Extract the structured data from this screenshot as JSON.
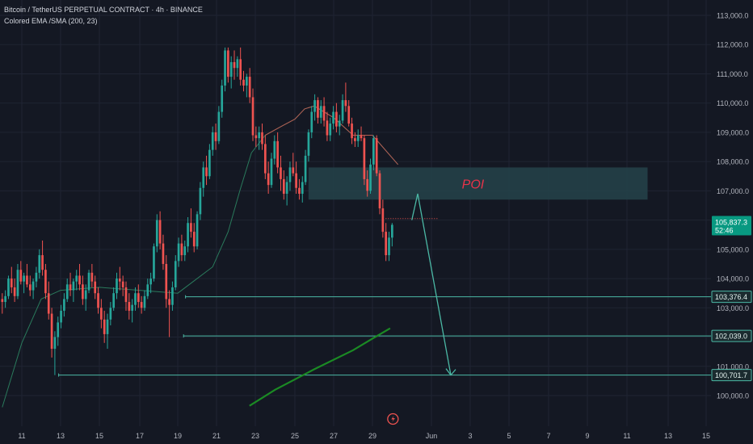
{
  "legend": {
    "title": "Bitcoin / TetherUS PERPETUAL CONTRACT · 4h · BINANCE",
    "indicator": "Colored EMA /SMA (200, 23)"
  },
  "colors": {
    "background": "#141823",
    "bull": "#26a69a",
    "bear": "#ef5350",
    "sma": "#1b8a24",
    "ema": "#2a7a5c",
    "level_line": "#4bb8a5",
    "projection": "#4bb8a5",
    "poi_fill": "#24434a",
    "poi_text": "#e8334a",
    "current_badge": "#089981"
  },
  "chart_data": {
    "type": "candlestick",
    "instrument": "Bitcoin / TetherUS PERPETUAL CONTRACT",
    "timeframe": "4h",
    "exchange": "BINANCE",
    "y_axis": {
      "range": [
        99400,
        113400
      ],
      "ticks": [
        "113,000.0",
        "112,000.0",
        "111,000.0",
        "110,000.0",
        "109,000.0",
        "108,000.0",
        "107,000.0",
        "106,000.0",
        "105,000.0",
        "104,000.0",
        "103,000.0",
        "102,000.0",
        "101,000.0",
        "100,000.0"
      ],
      "tick_values": [
        113000,
        112000,
        111000,
        110000,
        109000,
        108000,
        107000,
        106000,
        105000,
        104000,
        103000,
        102000,
        101000,
        100000
      ]
    },
    "x_axis": {
      "range": [
        10,
        16
      ],
      "ticks": [
        {
          "label": "11",
          "day": 11
        },
        {
          "label": "13",
          "day": 13
        },
        {
          "label": "15",
          "day": 15
        },
        {
          "label": "17",
          "day": 17
        },
        {
          "label": "19",
          "day": 19
        },
        {
          "label": "21",
          "day": 21
        },
        {
          "label": "23",
          "day": 23
        },
        {
          "label": "25",
          "day": 25
        },
        {
          "label": "27",
          "day": 27
        },
        {
          "label": "29",
          "day": 29
        },
        {
          "label": "Jun",
          "day": 32
        },
        {
          "label": "3",
          "day": 34
        },
        {
          "label": "5",
          "day": 36
        },
        {
          "label": "7",
          "day": 38
        },
        {
          "label": "9",
          "day": 40
        },
        {
          "label": "11",
          "day": 42
        },
        {
          "label": "13",
          "day": 44
        },
        {
          "label": "15",
          "day": 46
        }
      ]
    },
    "levels": [
      {
        "value": 103376.4,
        "label": "103,376.4",
        "from_day": 19.4
      },
      {
        "value": 102039.0,
        "label": "102,039.0",
        "from_day": 19.3
      },
      {
        "value": 100701.7,
        "label": "100,701.7",
        "from_day": 12.9
      }
    ],
    "current_price": {
      "value": 105837.3,
      "label": "105,837.3",
      "countdown": "52:46"
    },
    "poi_zone": {
      "label": "POI",
      "low": 106700,
      "high": 107800,
      "from_day": 25.7,
      "to_day": 43.0
    },
    "projection": [
      {
        "day": 31.0,
        "value": 106000
      },
      {
        "day": 31.3,
        "value": 106900
      },
      {
        "day": 33.0,
        "value": 100700
      }
    ],
    "sma": [
      {
        "day": 22.7,
        "value": 99650
      },
      {
        "day": 24.0,
        "value": 100200
      },
      {
        "day": 26.0,
        "value": 100900
      },
      {
        "day": 28.0,
        "value": 101550
      },
      {
        "day": 29.0,
        "value": 101950
      },
      {
        "day": 29.9,
        "value": 102300
      }
    ],
    "ema": [
      {
        "day": 10.0,
        "value": 99600
      },
      {
        "day": 11.0,
        "value": 101800
      },
      {
        "day": 12.0,
        "value": 103300
      },
      {
        "day": 13.0,
        "value": 103600
      },
      {
        "day": 15.0,
        "value": 103700
      },
      {
        "day": 17.0,
        "value": 103600
      },
      {
        "day": 19.0,
        "value": 103500
      },
      {
        "day": 19.8,
        "value": 103900
      },
      {
        "day": 20.8,
        "value": 104400
      },
      {
        "day": 21.6,
        "value": 105600
      },
      {
        "day": 22.2,
        "value": 107000
      },
      {
        "day": 22.8,
        "value": 108300
      },
      {
        "day": 23.5,
        "value": 108900
      },
      {
        "day": 24.3,
        "value": 109200
      },
      {
        "day": 25.0,
        "value": 109450
      },
      {
        "day": 25.5,
        "value": 109800
      },
      {
        "day": 26.0,
        "value": 109900
      },
      {
        "day": 27.0,
        "value": 109500
      },
      {
        "day": 28.0,
        "value": 108900
      },
      {
        "day": 29.0,
        "value": 108900
      },
      {
        "day": 30.3,
        "value": 107900
      }
    ],
    "candles": [
      [
        103300,
        103500,
        102800,
        103200
      ],
      [
        103200,
        103600,
        103000,
        103400
      ],
      [
        103400,
        104100,
        103300,
        104000
      ],
      [
        104000,
        104400,
        103500,
        103700
      ],
      [
        103700,
        104000,
        103200,
        103400
      ],
      [
        103400,
        104500,
        103300,
        104300
      ],
      [
        104300,
        104600,
        103800,
        103900
      ],
      [
        103900,
        104200,
        103500,
        104100
      ],
      [
        104100,
        104500,
        103700,
        103800
      ],
      [
        103800,
        104100,
        103400,
        103600
      ],
      [
        103600,
        104000,
        103300,
        103900
      ],
      [
        103900,
        104400,
        103700,
        104200
      ],
      [
        104200,
        105000,
        104000,
        104800
      ],
      [
        104800,
        105300,
        104100,
        104300
      ],
      [
        104300,
        104500,
        103300,
        103500
      ],
      [
        103500,
        103900,
        102600,
        102800
      ],
      [
        102800,
        103000,
        101300,
        101600
      ],
      [
        101600,
        102200,
        100700,
        102000
      ],
      [
        102000,
        102700,
        101700,
        102500
      ],
      [
        102500,
        103100,
        102300,
        102900
      ],
      [
        102900,
        103500,
        102700,
        103300
      ],
      [
        103300,
        104000,
        103200,
        103800
      ],
      [
        103800,
        104200,
        103400,
        103600
      ],
      [
        103600,
        104000,
        103200,
        103900
      ],
      [
        103900,
        104300,
        103600,
        104100
      ],
      [
        104100,
        104500,
        103600,
        103800
      ],
      [
        103800,
        104100,
        103100,
        103300
      ],
      [
        103300,
        103800,
        102900,
        103600
      ],
      [
        103600,
        104300,
        103500,
        104200
      ],
      [
        104200,
        104500,
        103700,
        103900
      ],
      [
        103900,
        104100,
        103300,
        103500
      ],
      [
        103500,
        103700,
        102800,
        103000
      ],
      [
        103000,
        103300,
        102300,
        102600
      ],
      [
        102600,
        102900,
        101800,
        102100
      ],
      [
        102100,
        102800,
        101600,
        102600
      ],
      [
        102600,
        103200,
        102400,
        103000
      ],
      [
        103000,
        103700,
        102900,
        103500
      ],
      [
        103500,
        104200,
        103300,
        104000
      ],
      [
        104000,
        104400,
        103600,
        103900
      ],
      [
        103900,
        104100,
        103400,
        103700
      ],
      [
        103700,
        103900,
        102900,
        103200
      ],
      [
        103200,
        103500,
        102600,
        102900
      ],
      [
        102900,
        103300,
        102500,
        103100
      ],
      [
        103100,
        103700,
        102900,
        103500
      ],
      [
        103500,
        103800,
        103000,
        103200
      ],
      [
        103200,
        103400,
        102800,
        103000
      ],
      [
        103000,
        103600,
        102900,
        103400
      ],
      [
        103400,
        104000,
        103300,
        103800
      ],
      [
        103800,
        104200,
        103500,
        104000
      ],
      [
        104000,
        105200,
        103900,
        105100
      ],
      [
        105100,
        106200,
        104900,
        106000
      ],
      [
        106000,
        106300,
        105000,
        105200
      ],
      [
        105200,
        105500,
        104300,
        104500
      ],
      [
        104500,
        104800,
        103000,
        103300
      ],
      [
        103300,
        103600,
        102000,
        103100
      ],
      [
        103100,
        103900,
        102900,
        103700
      ],
      [
        103700,
        104800,
        103600,
        104600
      ],
      [
        104600,
        105400,
        104400,
        105200
      ],
      [
        105200,
        105500,
        104600,
        104800
      ],
      [
        104800,
        105300,
        104600,
        105100
      ],
      [
        105100,
        106100,
        104900,
        105900
      ],
      [
        105900,
        106400,
        105400,
        105600
      ],
      [
        105600,
        105900,
        104900,
        105100
      ],
      [
        105100,
        106300,
        105000,
        106200
      ],
      [
        106200,
        107300,
        106000,
        107100
      ],
      [
        107100,
        108000,
        106800,
        107800
      ],
      [
        107800,
        108200,
        107200,
        107500
      ],
      [
        107500,
        108600,
        107400,
        108400
      ],
      [
        108400,
        109200,
        108200,
        109000
      ],
      [
        109000,
        109300,
        108400,
        108700
      ],
      [
        108700,
        109900,
        108600,
        109700
      ],
      [
        109700,
        110800,
        109500,
        110600
      ],
      [
        110600,
        111900,
        110400,
        111800
      ],
      [
        111800,
        111900,
        110700,
        110900
      ],
      [
        110900,
        111600,
        110500,
        111400
      ],
      [
        111400,
        111800,
        110800,
        111200
      ],
      [
        111200,
        111600,
        110900,
        111500
      ],
      [
        111500,
        111900,
        110600,
        110800
      ],
      [
        110800,
        111100,
        110400,
        110600
      ],
      [
        110600,
        111000,
        110200,
        110900
      ],
      [
        110900,
        111200,
        110000,
        110200
      ],
      [
        110200,
        110500,
        108700,
        108900
      ],
      [
        108900,
        109200,
        108500,
        108800
      ],
      [
        108800,
        109200,
        108400,
        109000
      ],
      [
        109000,
        109300,
        108400,
        108600
      ],
      [
        108600,
        108900,
        107400,
        107600
      ],
      [
        107600,
        108000,
        106900,
        107200
      ],
      [
        107200,
        108300,
        107100,
        108100
      ],
      [
        108100,
        108900,
        107900,
        108700
      ],
      [
        108700,
        109000,
        107600,
        107800
      ],
      [
        107800,
        108200,
        107000,
        107400
      ],
      [
        107400,
        107700,
        106700,
        106900
      ],
      [
        106900,
        107500,
        106500,
        107300
      ],
      [
        107300,
        108000,
        107000,
        107800
      ],
      [
        107800,
        108300,
        107500,
        107600
      ],
      [
        107600,
        108000,
        106900,
        107100
      ],
      [
        107100,
        107400,
        106700,
        106900
      ],
      [
        106900,
        107500,
        106600,
        107300
      ],
      [
        107300,
        108400,
        107200,
        108200
      ],
      [
        108200,
        109100,
        108000,
        109000
      ],
      [
        109000,
        109900,
        108800,
        109700
      ],
      [
        109700,
        110300,
        109400,
        110100
      ],
      [
        110100,
        110200,
        109300,
        109500
      ],
      [
        109500,
        110100,
        109300,
        109900
      ],
      [
        109900,
        110200,
        109200,
        109400
      ],
      [
        109400,
        109700,
        108700,
        108900
      ],
      [
        108900,
        109500,
        108700,
        109300
      ],
      [
        109300,
        109900,
        109100,
        109700
      ],
      [
        109700,
        110000,
        109000,
        109200
      ],
      [
        109200,
        109600,
        108900,
        109400
      ],
      [
        109400,
        110300,
        109300,
        110100
      ],
      [
        110100,
        110700,
        109700,
        109900
      ],
      [
        109900,
        110100,
        109200,
        109300
      ],
      [
        109300,
        109500,
        108600,
        108800
      ],
      [
        108800,
        109000,
        108500,
        108700
      ],
      [
        108700,
        109100,
        108500,
        108900
      ],
      [
        108900,
        109200,
        108700,
        108800
      ],
      [
        108800,
        108900,
        107200,
        107400
      ],
      [
        107400,
        107700,
        106800,
        107000
      ],
      [
        107000,
        108100,
        106900,
        107900
      ],
      [
        107900,
        108900,
        107700,
        108800
      ],
      [
        108800,
        108900,
        107500,
        107600
      ],
      [
        107600,
        107700,
        106200,
        106400
      ],
      [
        106400,
        106700,
        105400,
        105600
      ],
      [
        105600,
        105900,
        104600,
        104800
      ],
      [
        104800,
        105600,
        104600,
        105400
      ],
      [
        105400,
        105900,
        105100,
        105837
      ]
    ],
    "candles_day_range": [
      10.0,
      30.0
    ]
  }
}
